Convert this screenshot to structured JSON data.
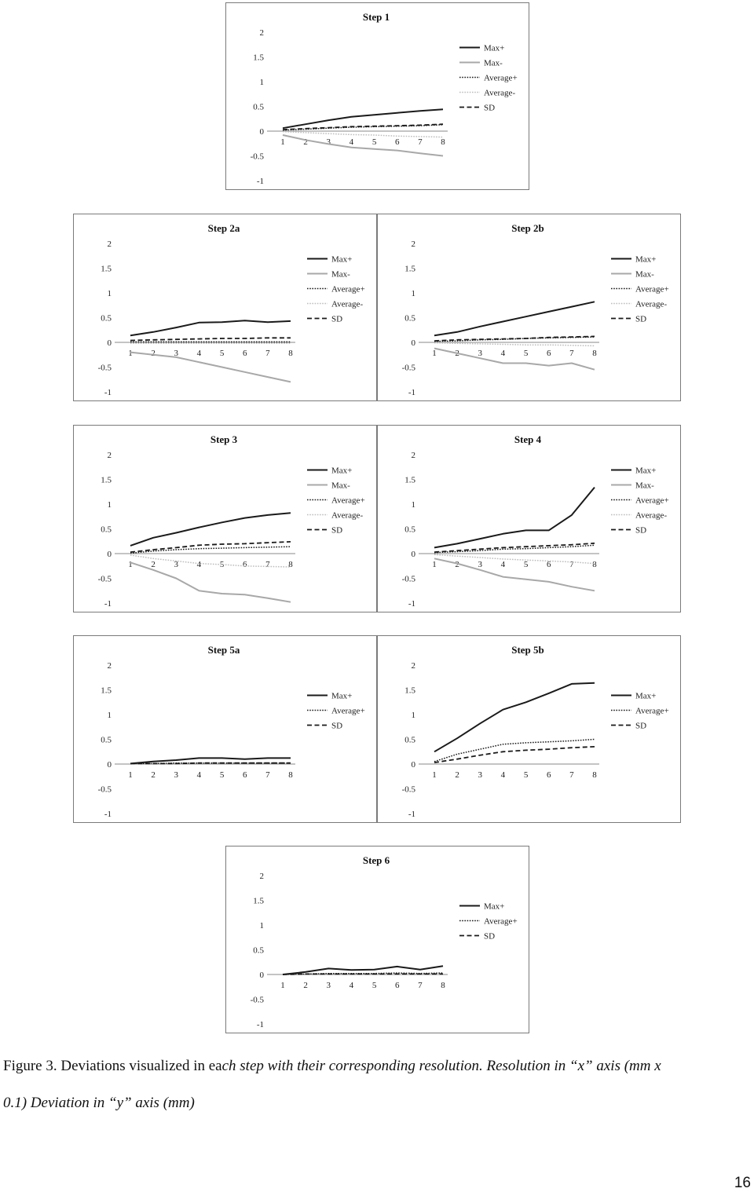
{
  "charts": [
    {
      "title": "Step 1",
      "x": [
        1,
        2,
        3,
        4,
        5,
        6,
        7,
        8
      ],
      "ylim": [
        -1,
        2
      ],
      "yticks": [
        2,
        1.5,
        1,
        0.5,
        0,
        -0.5,
        -1
      ],
      "series": [
        {
          "name": "Max+",
          "style": "max-plus",
          "values": [
            0.06,
            0.14,
            0.22,
            0.29,
            0.33,
            0.37,
            0.41,
            0.44
          ]
        },
        {
          "name": "Max-",
          "style": "max-minus",
          "values": [
            -0.08,
            -0.18,
            -0.26,
            -0.33,
            -0.36,
            -0.39,
            -0.45,
            -0.5
          ]
        },
        {
          "name": "Average+",
          "style": "avg-plus",
          "values": [
            0.02,
            0.04,
            0.06,
            0.08,
            0.09,
            0.1,
            0.11,
            0.13
          ]
        },
        {
          "name": "Average-",
          "style": "avg-minus",
          "values": [
            -0.01,
            -0.03,
            -0.05,
            -0.07,
            -0.08,
            -0.1,
            -0.11,
            -0.12
          ]
        },
        {
          "name": "SD",
          "style": "sd",
          "values": [
            0.03,
            0.05,
            0.07,
            0.09,
            0.1,
            0.11,
            0.12,
            0.14
          ]
        }
      ]
    },
    {
      "title": "Step 2a",
      "x": [
        1,
        2,
        3,
        4,
        5,
        6,
        7,
        8
      ],
      "ylim": [
        -1,
        2
      ],
      "yticks": [
        2,
        1.5,
        1,
        0.5,
        0,
        -0.5,
        -1
      ],
      "series": [
        {
          "name": "Max+",
          "style": "max-plus",
          "values": [
            0.14,
            0.21,
            0.3,
            0.4,
            0.41,
            0.44,
            0.41,
            0.43
          ]
        },
        {
          "name": "Max-",
          "style": "max-minus",
          "values": [
            -0.2,
            -0.25,
            -0.3,
            -0.4,
            -0.5,
            -0.6,
            -0.7,
            -0.8
          ]
        },
        {
          "name": "Average+",
          "style": "avg-plus",
          "values": [
            0.01,
            0.01,
            0.01,
            0.01,
            0.01,
            0.01,
            0.01,
            0.01
          ]
        },
        {
          "name": "Average-",
          "style": "avg-minus",
          "values": [
            -0.02,
            -0.02,
            -0.02,
            -0.02,
            -0.02,
            -0.02,
            -0.02,
            -0.02
          ]
        },
        {
          "name": "SD",
          "style": "sd",
          "values": [
            0.04,
            0.05,
            0.06,
            0.07,
            0.08,
            0.08,
            0.09,
            0.09
          ]
        }
      ]
    },
    {
      "title": "Step 2b",
      "x": [
        1,
        2,
        3,
        4,
        5,
        6,
        7,
        8
      ],
      "ylim": [
        -1,
        2
      ],
      "yticks": [
        2,
        1.5,
        1,
        0.5,
        0,
        -0.5,
        -1
      ],
      "series": [
        {
          "name": "Max+",
          "style": "max-plus",
          "values": [
            0.14,
            0.21,
            0.32,
            0.42,
            0.52,
            0.62,
            0.72,
            0.82
          ]
        },
        {
          "name": "Max-",
          "style": "max-minus",
          "values": [
            -0.12,
            -0.22,
            -0.32,
            -0.42,
            -0.42,
            -0.47,
            -0.42,
            -0.55
          ]
        },
        {
          "name": "Average+",
          "style": "avg-plus",
          "values": [
            0.02,
            0.03,
            0.05,
            0.06,
            0.08,
            0.09,
            0.1,
            0.11
          ]
        },
        {
          "name": "Average-",
          "style": "avg-minus",
          "values": [
            -0.01,
            -0.02,
            -0.03,
            -0.04,
            -0.05,
            -0.05,
            -0.06,
            -0.07
          ]
        },
        {
          "name": "SD",
          "style": "sd",
          "values": [
            0.03,
            0.05,
            0.06,
            0.07,
            0.08,
            0.1,
            0.11,
            0.12
          ]
        }
      ]
    },
    {
      "title": "Step 3",
      "x": [
        1,
        2,
        3,
        4,
        5,
        6,
        7,
        8
      ],
      "ylim": [
        -1,
        2
      ],
      "yticks": [
        2,
        1.5,
        1,
        0.5,
        0,
        -0.5,
        -1
      ],
      "series": [
        {
          "name": "Max+",
          "style": "max-plus",
          "values": [
            0.16,
            0.32,
            0.42,
            0.53,
            0.63,
            0.72,
            0.78,
            0.82
          ]
        },
        {
          "name": "Max-",
          "style": "max-minus",
          "values": [
            -0.18,
            -0.33,
            -0.5,
            -0.75,
            -0.81,
            -0.83,
            -0.9,
            -0.98
          ]
        },
        {
          "name": "Average+",
          "style": "avg-plus",
          "values": [
            0.01,
            0.05,
            0.08,
            0.1,
            0.11,
            0.12,
            0.13,
            0.14
          ]
        },
        {
          "name": "Average-",
          "style": "avg-minus",
          "values": [
            -0.03,
            -0.1,
            -0.15,
            -0.2,
            -0.22,
            -0.25,
            -0.26,
            -0.27
          ]
        },
        {
          "name": "SD",
          "style": "sd",
          "values": [
            0.03,
            0.08,
            0.12,
            0.17,
            0.19,
            0.2,
            0.22,
            0.24
          ]
        }
      ]
    },
    {
      "title": "Step 4",
      "x": [
        1,
        2,
        3,
        4,
        5,
        6,
        7,
        8
      ],
      "ylim": [
        -1,
        2
      ],
      "yticks": [
        2,
        1.5,
        1,
        0.5,
        0,
        -0.5,
        -1
      ],
      "series": [
        {
          "name": "Max+",
          "style": "max-plus",
          "values": [
            0.12,
            0.2,
            0.3,
            0.4,
            0.47,
            0.47,
            0.78,
            1.34
          ]
        },
        {
          "name": "Max-",
          "style": "max-minus",
          "values": [
            -0.1,
            -0.2,
            -0.33,
            -0.47,
            -0.52,
            -0.57,
            -0.67,
            -0.75
          ]
        },
        {
          "name": "Average+",
          "style": "avg-plus",
          "values": [
            0.02,
            0.04,
            0.06,
            0.09,
            0.1,
            0.12,
            0.14,
            0.17
          ]
        },
        {
          "name": "Average-",
          "style": "avg-minus",
          "values": [
            -0.02,
            -0.05,
            -0.08,
            -0.11,
            -0.13,
            -0.15,
            -0.17,
            -0.2
          ]
        },
        {
          "name": "SD",
          "style": "sd",
          "values": [
            0.03,
            0.06,
            0.09,
            0.12,
            0.14,
            0.16,
            0.18,
            0.21
          ]
        }
      ]
    },
    {
      "title": "Step 5a",
      "x": [
        1,
        2,
        3,
        4,
        5,
        6,
        7,
        8
      ],
      "ylim": [
        -1,
        2
      ],
      "yticks": [
        2,
        1.5,
        1,
        0.5,
        0,
        -0.5,
        -1
      ],
      "series": [
        {
          "name": "Max+",
          "style": "max-plus",
          "values": [
            0.01,
            0.05,
            0.08,
            0.12,
            0.12,
            0.1,
            0.12,
            0.12
          ]
        },
        {
          "name": "Average+",
          "style": "avg-plus",
          "values": [
            0.01,
            0.01,
            0.02,
            0.02,
            0.02,
            0.02,
            0.02,
            0.02
          ]
        },
        {
          "name": "SD",
          "style": "sd",
          "values": [
            0.01,
            0.01,
            0.01,
            0.02,
            0.02,
            0.02,
            0.02,
            0.02
          ]
        }
      ]
    },
    {
      "title": "Step 5b",
      "x": [
        1,
        2,
        3,
        4,
        5,
        6,
        7,
        8
      ],
      "ylim": [
        -1,
        2
      ],
      "yticks": [
        2,
        1.5,
        1,
        0.5,
        0,
        -0.5,
        -1
      ],
      "series": [
        {
          "name": "Max+",
          "style": "max-plus",
          "values": [
            0.25,
            0.52,
            0.82,
            1.1,
            1.25,
            1.43,
            1.62,
            1.64
          ]
        },
        {
          "name": "Average+",
          "style": "avg-plus",
          "values": [
            0.05,
            0.2,
            0.3,
            0.4,
            0.43,
            0.45,
            0.47,
            0.5
          ]
        },
        {
          "name": "SD",
          "style": "sd",
          "values": [
            0.03,
            0.1,
            0.18,
            0.25,
            0.28,
            0.3,
            0.33,
            0.35
          ]
        }
      ]
    },
    {
      "title": "Step 6",
      "x": [
        1,
        2,
        3,
        4,
        5,
        6,
        7,
        8
      ],
      "ylim": [
        -1,
        2
      ],
      "yticks": [
        2,
        1.5,
        1,
        0.5,
        0,
        -0.5,
        -1
      ],
      "series": [
        {
          "name": "Max+",
          "style": "max-plus",
          "values": [
            0.0,
            0.05,
            0.12,
            0.09,
            0.1,
            0.16,
            0.1,
            0.17
          ]
        },
        {
          "name": "Average+",
          "style": "avg-plus",
          "values": [
            0.0,
            0.01,
            0.02,
            0.02,
            0.02,
            0.03,
            0.02,
            0.03
          ]
        },
        {
          "name": "SD",
          "style": "sd",
          "values": [
            0.0,
            0.01,
            0.01,
            0.01,
            0.01,
            0.01,
            0.01,
            0.01
          ]
        }
      ]
    }
  ],
  "styles": {
    "max-plus": {
      "color": "#1a1a1a",
      "width": 2.0,
      "dash": ""
    },
    "max-minus": {
      "color": "#a8a8a8",
      "width": 2.0,
      "dash": ""
    },
    "avg-plus": {
      "color": "#1a1a1a",
      "width": 1.5,
      "dash": "1.6 1.6"
    },
    "avg-minus": {
      "color": "#bdbdbd",
      "width": 1.5,
      "dash": "1.6 1.6"
    },
    "sd": {
      "color": "#1a1a1a",
      "width": 1.8,
      "dash": "6 3.5"
    }
  },
  "caption": {
    "main": "Figure 3. Deviations visualized in ea",
    "main_tail": "ch step with their corresponding resolution. Resolution in “x” axis (mm x",
    "line2": "0.1) Deviation in “y” axis (mm)"
  },
  "page_number": "16"
}
